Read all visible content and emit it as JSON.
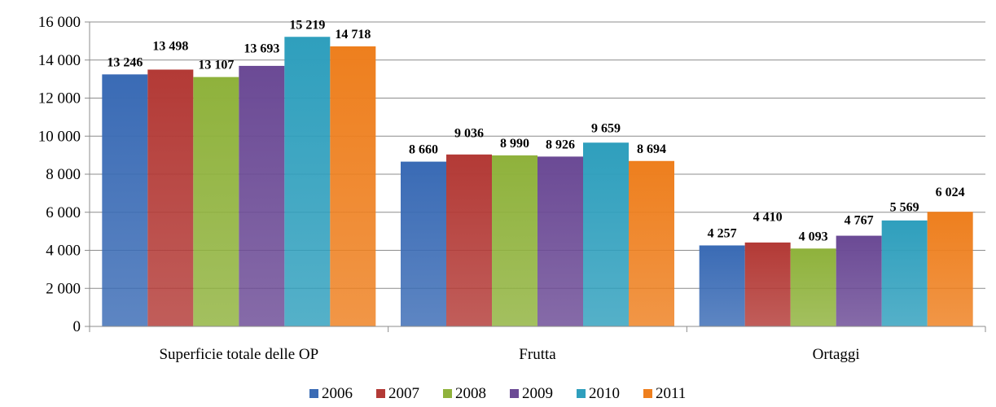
{
  "chart_data": {
    "type": "bar",
    "categories": [
      "Superficie totale delle OP",
      "Frutta",
      "Ortaggi"
    ],
    "series": [
      {
        "name": "2006",
        "values": [
          13246,
          8660,
          4257
        ],
        "labels": [
          "13 246",
          "8 660",
          "4 257"
        ],
        "color": "#3a6bb5"
      },
      {
        "name": "2007",
        "values": [
          13498,
          9036,
          4410
        ],
        "labels": [
          "13 498",
          "9 036",
          "4 410"
        ],
        "color": "#b33a36"
      },
      {
        "name": "2008",
        "values": [
          13107,
          8990,
          4093
        ],
        "labels": [
          "13 107",
          "8 990",
          "4 093"
        ],
        "color": "#8fb23c"
      },
      {
        "name": "2009",
        "values": [
          13693,
          8926,
          4767
        ],
        "labels": [
          "13 693",
          "8 926",
          "4 767"
        ],
        "color": "#6b4a95"
      },
      {
        "name": "2010",
        "values": [
          15219,
          9659,
          5569
        ],
        "labels": [
          "15 219",
          "9 659",
          "5 569"
        ],
        "color": "#2f9fbd"
      },
      {
        "name": "2011",
        "values": [
          14718,
          8694,
          6024
        ],
        "labels": [
          "14 718",
          "8 694",
          "6 024"
        ],
        "color": "#ee7f1e"
      }
    ],
    "ylim": [
      0,
      16000
    ],
    "yticks": [
      0,
      2000,
      4000,
      6000,
      8000,
      10000,
      12000,
      14000,
      16000
    ],
    "ytick_labels": [
      "0",
      "2 000",
      "4 000",
      "6 000",
      "8 000",
      "10 000",
      "12 000",
      "14 000",
      "16 000"
    ],
    "grid": true,
    "legend_position": "bottom",
    "title": "",
    "xlabel": "",
    "ylabel": ""
  }
}
